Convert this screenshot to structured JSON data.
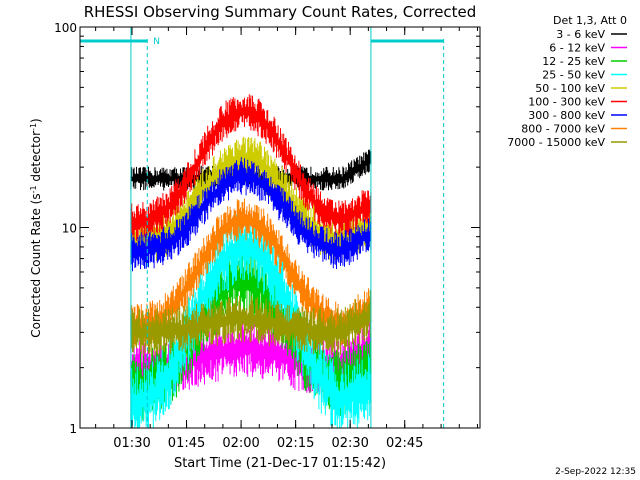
{
  "chart_data": {
    "type": "line",
    "title": "RHESSI Observing Summary Count Rates, Corrected",
    "xlabel": "Start Time (21-Dec-17 01:15:42)",
    "ylabel_main": "Corrected Count Rate (s",
    "ylabel_sup1": "-1",
    "ylabel_mid": " detector",
    "ylabel_sup2": "-1",
    "ylabel_end": ")",
    "yscale": "log",
    "ylim": [
      1,
      100
    ],
    "xlim_minutes": [
      0,
      110
    ],
    "x_ticks": [
      "01:30",
      "01:45",
      "02:00",
      "02:15",
      "02:30",
      "02:45"
    ],
    "y_ticks": [
      "1",
      "10",
      "100"
    ],
    "legend_title": "Det 1,3, Att 0",
    "legend_position": "top-right",
    "data_window_minutes": [
      14,
      80
    ],
    "night_marker_label": "N",
    "series": [
      {
        "name": "3 - 6 keV",
        "color": "#000000",
        "base": 17.5,
        "peak": 18,
        "noise": 0.05
      },
      {
        "name": "6 - 12 keV",
        "color": "#ff00ff",
        "base": 2.0,
        "peak": 2.5,
        "noise": 0.12
      },
      {
        "name": "12 - 25 keV",
        "color": "#00cc00",
        "base": 1.6,
        "peak": 5.5,
        "noise": 0.15
      },
      {
        "name": "25 - 50 keV",
        "color": "#00ffff",
        "base": 1.3,
        "peak": 8.0,
        "noise": 0.15
      },
      {
        "name": "50 - 100 keV",
        "color": "#cccc00",
        "base": 8.5,
        "peak": 22,
        "noise": 0.1
      },
      {
        "name": "100 - 300 keV",
        "color": "#ff0000",
        "base": 10.5,
        "peak": 38,
        "noise": 0.08
      },
      {
        "name": "300 - 800 keV",
        "color": "#0000ff",
        "base": 7.5,
        "peak": 18,
        "noise": 0.08
      },
      {
        "name": "800 - 7000 keV",
        "color": "#ff8000",
        "base": 3.2,
        "peak": 11,
        "noise": 0.09
      },
      {
        "name": "7000 - 15000 keV",
        "color": "#999900",
        "base": 3.0,
        "peak": 3.5,
        "noise": 0.1
      }
    ]
  },
  "footer": {
    "date": "2-Sep-2022 12:35"
  }
}
